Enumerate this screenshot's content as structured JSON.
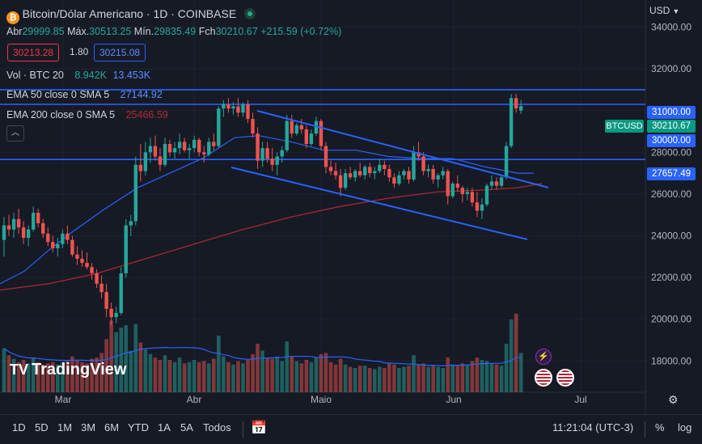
{
  "header": {
    "symbol_title": "Bitcoin/Dólar Americano · 1D · COINBASE",
    "ohlc": [
      {
        "label": "Abr",
        "value": "29999.85"
      },
      {
        "label": "Máx.",
        "value": "30513.25"
      },
      {
        "label": "Mín.",
        "value": "29835.49"
      },
      {
        "label": "Fch",
        "value": "30210.67"
      }
    ],
    "change": "+215.59 (+0.72%)",
    "bid": "30213.28",
    "spread": "1.80",
    "ask": "30215.08",
    "currency": "USD"
  },
  "indicators": [
    {
      "name": "Vol · BTC 20",
      "values": [
        "8.942K",
        "13.453K"
      ]
    },
    {
      "name": "EMA 50 close 0 SMA 5",
      "values": [
        "27144.92"
      ]
    },
    {
      "name": "EMA 200 close 0 SMA 5",
      "values": [
        "25466.59"
      ]
    }
  ],
  "price_tags": {
    "level_high": "31000.00",
    "symbol": "BTCUSD",
    "last": "30210.67",
    "level_mid": "30000.00",
    "level_low": "27657.49"
  },
  "bottom_bar": {
    "timeframes": [
      "1D",
      "5D",
      "1M",
      "3M",
      "6M",
      "YTD",
      "1A",
      "5A",
      "Todos"
    ],
    "time": "11:21:04 (UTC-3)",
    "percent": "%",
    "log": "log"
  },
  "brand": "TradingView",
  "colors": {
    "up": "#26a69a",
    "down": "#ef5350",
    "ema50": "#2962ff",
    "ema200": "#b22833",
    "lines": "#2962ff"
  },
  "chart_data": {
    "type": "candlestick",
    "y_ticks": [
      "34000.00",
      "32000.00",
      "30000.00",
      "28000.00",
      "26000.00",
      "24000.00",
      "22000.00",
      "20000.00",
      "18000.00"
    ],
    "y_range": [
      16500,
      35300
    ],
    "x_ticks": [
      "Mar",
      "Abr",
      "Maio",
      "Jun",
      "Jul"
    ],
    "ohlc": [
      [
        23800,
        24900,
        23000,
        24500
      ],
      [
        24500,
        25000,
        24000,
        24300
      ],
      [
        24300,
        25100,
        23900,
        24800
      ],
      [
        24800,
        25300,
        24100,
        24400
      ],
      [
        24400,
        24700,
        23600,
        23900
      ],
      [
        23900,
        24500,
        23500,
        24300
      ],
      [
        24300,
        25400,
        24200,
        25100
      ],
      [
        25100,
        25300,
        24400,
        24600
      ],
      [
        24600,
        24800,
        23900,
        24100
      ],
      [
        24100,
        24400,
        23500,
        23700
      ],
      [
        23700,
        24000,
        23200,
        23400
      ],
      [
        23400,
        23900,
        23000,
        23600
      ],
      [
        23600,
        24300,
        23400,
        24100
      ],
      [
        24100,
        24500,
        23600,
        23800
      ],
      [
        23800,
        24000,
        23000,
        23100
      ],
      [
        23100,
        23500,
        22600,
        22900
      ],
      [
        22900,
        23300,
        22500,
        22700
      ],
      [
        22700,
        23200,
        22400,
        22500
      ],
      [
        22500,
        22700,
        21900,
        22200
      ],
      [
        22200,
        22400,
        21500,
        21700
      ],
      [
        21700,
        22100,
        21000,
        21300
      ],
      [
        21300,
        21700,
        20100,
        20500
      ],
      [
        20500,
        20800,
        19700,
        20100
      ],
      [
        20100,
        20600,
        19800,
        20300
      ],
      [
        20300,
        22500,
        20200,
        22200
      ],
      [
        22200,
        24800,
        22000,
        24500
      ],
      [
        24500,
        25000,
        24000,
        24700
      ],
      [
        24700,
        27800,
        24500,
        27400
      ],
      [
        27400,
        28400,
        26600,
        27100
      ],
      [
        27100,
        28500,
        26900,
        28000
      ],
      [
        28000,
        28700,
        27500,
        28300
      ],
      [
        28300,
        28800,
        27600,
        27800
      ],
      [
        27800,
        28200,
        27100,
        27400
      ],
      [
        27400,
        28700,
        27300,
        28400
      ],
      [
        28400,
        28600,
        27800,
        28000
      ],
      [
        28000,
        28500,
        27700,
        28200
      ],
      [
        28200,
        28900,
        27900,
        28500
      ],
      [
        28500,
        28700,
        28000,
        28100
      ],
      [
        28100,
        28400,
        27700,
        28200
      ],
      [
        28200,
        28800,
        28000,
        28600
      ],
      [
        28600,
        28700,
        27800,
        28000
      ],
      [
        28000,
        28300,
        27500,
        27900
      ],
      [
        27900,
        28700,
        27800,
        28500
      ],
      [
        28500,
        28900,
        28100,
        28300
      ],
      [
        28300,
        30200,
        28200,
        30100
      ],
      [
        30100,
        30500,
        29700,
        30300
      ],
      [
        30300,
        30600,
        29900,
        30100
      ],
      [
        30100,
        30400,
        29800,
        30200
      ],
      [
        30200,
        30600,
        29700,
        29900
      ],
      [
        29900,
        30400,
        29700,
        30300
      ],
      [
        30300,
        30500,
        29400,
        29600
      ],
      [
        29600,
        29900,
        28700,
        28900
      ],
      [
        28900,
        29200,
        27200,
        27600
      ],
      [
        27600,
        28500,
        27300,
        28200
      ],
      [
        28200,
        28500,
        27500,
        27700
      ],
      [
        27700,
        28200,
        27100,
        27400
      ],
      [
        27400,
        28000,
        26900,
        27800
      ],
      [
        27800,
        28300,
        27500,
        28100
      ],
      [
        28100,
        29800,
        28000,
        29500
      ],
      [
        29500,
        29800,
        28700,
        28900
      ],
      [
        28900,
        29400,
        28800,
        29300
      ],
      [
        29300,
        29600,
        28900,
        29100
      ],
      [
        29100,
        29300,
        28200,
        28400
      ],
      [
        28400,
        29100,
        28300,
        28900
      ],
      [
        28900,
        29700,
        28800,
        29500
      ],
      [
        29500,
        29600,
        28100,
        28300
      ],
      [
        28300,
        28500,
        27000,
        27300
      ],
      [
        27300,
        27600,
        26900,
        27100
      ],
      [
        27100,
        27500,
        26700,
        26900
      ],
      [
        26900,
        27200,
        25900,
        26300
      ],
      [
        26300,
        27200,
        26200,
        27000
      ],
      [
        27000,
        27300,
        26700,
        26800
      ],
      [
        26800,
        27200,
        26600,
        27100
      ],
      [
        27100,
        27500,
        26800,
        26900
      ],
      [
        26900,
        27400,
        26700,
        27300
      ],
      [
        27300,
        27500,
        26800,
        27000
      ],
      [
        27000,
        27300,
        26700,
        27100
      ],
      [
        27100,
        27700,
        27000,
        27400
      ],
      [
        27400,
        27600,
        26900,
        27200
      ],
      [
        27200,
        27400,
        26600,
        26800
      ],
      [
        26800,
        27000,
        26300,
        26500
      ],
      [
        26500,
        27100,
        26400,
        26900
      ],
      [
        26900,
        27200,
        26700,
        27100
      ],
      [
        27100,
        27300,
        26500,
        26700
      ],
      [
        26700,
        28300,
        26600,
        28000
      ],
      [
        28000,
        28500,
        27600,
        27800
      ],
      [
        27800,
        28000,
        26900,
        27100
      ],
      [
        27100,
        27400,
        26800,
        27200
      ],
      [
        27200,
        27400,
        26500,
        26700
      ],
      [
        26700,
        27000,
        26300,
        26900
      ],
      [
        26900,
        27300,
        26700,
        27100
      ],
      [
        27100,
        27200,
        25500,
        25900
      ],
      [
        25900,
        26600,
        25800,
        26500
      ],
      [
        26500,
        26900,
        26100,
        26300
      ],
      [
        26300,
        26400,
        25600,
        26000
      ],
      [
        26000,
        26300,
        25700,
        26100
      ],
      [
        26100,
        26300,
        25400,
        25600
      ],
      [
        25600,
        26100,
        24900,
        25200
      ],
      [
        25200,
        25800,
        24800,
        25500
      ],
      [
        25500,
        26500,
        25400,
        26400
      ],
      [
        26400,
        26900,
        26200,
        26600
      ],
      [
        26600,
        26800,
        26200,
        26400
      ],
      [
        26400,
        26900,
        26300,
        26800
      ],
      [
        26800,
        28500,
        26700,
        28300
      ],
      [
        28300,
        30800,
        28200,
        30600
      ],
      [
        30600,
        30800,
        29900,
        30100
      ],
      [
        29999.85,
        30513.25,
        29835.49,
        30210.67
      ]
    ],
    "volume": [
      3.8,
      3.2,
      2.9,
      2.6,
      2.8,
      2.5,
      3.0,
      2.6,
      2.4,
      2.5,
      2.6,
      2.4,
      2.6,
      2.7,
      3.1,
      2.8,
      2.6,
      2.5,
      2.9,
      3.0,
      3.4,
      4.6,
      6.2,
      5.2,
      5.6,
      5.8,
      3.6,
      5.9,
      4.3,
      3.7,
      3.3,
      3.0,
      2.8,
      3.2,
      2.8,
      2.6,
      3.0,
      2.5,
      2.6,
      2.8,
      2.6,
      2.7,
      2.5,
      2.9,
      4.9,
      3.1,
      2.6,
      2.4,
      2.7,
      2.5,
      2.8,
      3.3,
      4.2,
      3.6,
      3.0,
      2.9,
      3.1,
      2.7,
      4.4,
      3.1,
      2.7,
      2.5,
      2.8,
      2.6,
      3.0,
      3.3,
      3.4,
      2.6,
      2.4,
      2.9,
      2.4,
      2.2,
      2.1,
      2.3,
      2.3,
      2.1,
      2.0,
      2.2,
      2.1,
      2.5,
      2.4,
      2.1,
      2.2,
      2.3,
      3.2,
      2.4,
      2.5,
      2.2,
      2.3,
      2.2,
      2.1,
      3.0,
      2.4,
      2.3,
      2.5,
      2.4,
      2.7,
      3.0,
      2.8,
      2.7,
      2.5,
      2.4,
      2.3,
      4.2,
      6.3,
      6.8,
      3.4
    ],
    "ema50": [
      [
        0,
        21700
      ],
      [
        30,
        22300
      ],
      [
        60,
        23300
      ],
      [
        90,
        24200
      ],
      [
        130,
        25300
      ],
      [
        170,
        26300
      ],
      [
        210,
        27000
      ],
      [
        250,
        27700
      ],
      [
        290,
        28700
      ],
      [
        320,
        28800
      ],
      [
        360,
        28500
      ],
      [
        400,
        28100
      ],
      [
        440,
        28100
      ],
      [
        480,
        27800
      ],
      [
        520,
        27700
      ],
      [
        560,
        27700
      ],
      [
        600,
        27300
      ],
      [
        640,
        27000
      ],
      [
        660,
        27000
      ]
    ],
    "ema200": [
      [
        0,
        21400
      ],
      [
        60,
        21700
      ],
      [
        120,
        22200
      ],
      [
        180,
        22900
      ],
      [
        240,
        23600
      ],
      [
        300,
        24300
      ],
      [
        360,
        24900
      ],
      [
        420,
        25400
      ],
      [
        480,
        25800
      ],
      [
        540,
        26100
      ],
      [
        600,
        26200
      ],
      [
        640,
        26300
      ],
      [
        670,
        26500
      ]
    ],
    "trendlines": [
      {
        "from": [
          318,
          137
        ],
        "to": [
          678,
          232
        ]
      },
      {
        "from": [
          286,
          207
        ],
        "to": [
          652,
          296
        ]
      }
    ],
    "hlines": [
      31000,
      30300,
      27657.49
    ]
  }
}
